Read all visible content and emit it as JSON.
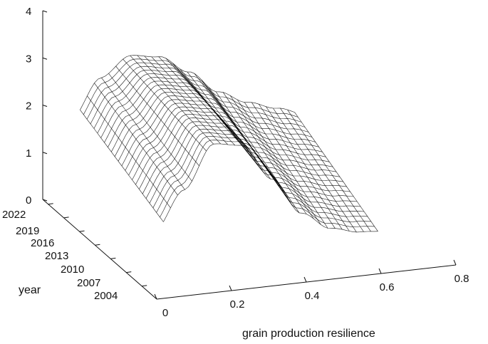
{
  "chart_data": {
    "type": "surface",
    "title": "",
    "xlabel": "grain production resilience",
    "ylabel": "year",
    "zlabel": "",
    "xlim": [
      0,
      0.8
    ],
    "ylim": [
      2002,
      2022
    ],
    "zlim": [
      0,
      4
    ],
    "x_ticks": [
      "0",
      "0.2",
      "0.4",
      "0.6",
      "0.8"
    ],
    "y_ticks": [
      "2022",
      "2019",
      "2016",
      "2013",
      "2010",
      "2007",
      "2004"
    ],
    "z_ticks": [
      "0",
      "1",
      "2",
      "3",
      "4"
    ],
    "grid": false,
    "legend": "none",
    "mesh_color": "#000000",
    "face_color": "#ffffff",
    "surface_description_points": {
      "years": [
        2004,
        2007,
        2010,
        2013,
        2016,
        2019,
        2022
      ],
      "x": [
        0.0,
        0.1,
        0.2,
        0.3,
        0.4,
        0.5,
        0.6,
        0.7,
        0.8
      ],
      "z_at_2004": [
        0.6,
        1.4,
        2.3,
        2.2,
        1.4,
        0.6,
        0.2,
        0.05,
        0.0
      ],
      "z_at_2022": [
        0.8,
        1.6,
        2.0,
        1.9,
        1.5,
        1.0,
        0.7,
        0.5,
        0.3
      ]
    }
  }
}
